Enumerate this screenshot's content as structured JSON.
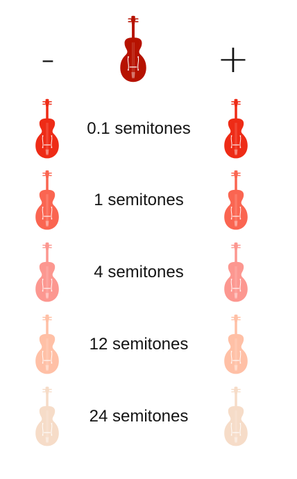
{
  "header": {
    "minus_label": "-",
    "plus_label": "+",
    "main_violin_color": "#b61200",
    "main_violin_icon": "violin-icon"
  },
  "rows": [
    {
      "label": "0.1 semitones",
      "color": "#ee2b16"
    },
    {
      "label": "1 semitones",
      "color": "#fa6551"
    },
    {
      "label": "4 semitones",
      "color": "#fc9790"
    },
    {
      "label": "12 semitones",
      "color": "#ffc0a6"
    },
    {
      "label": "24 semitones",
      "color": "#f6dcc8"
    }
  ]
}
